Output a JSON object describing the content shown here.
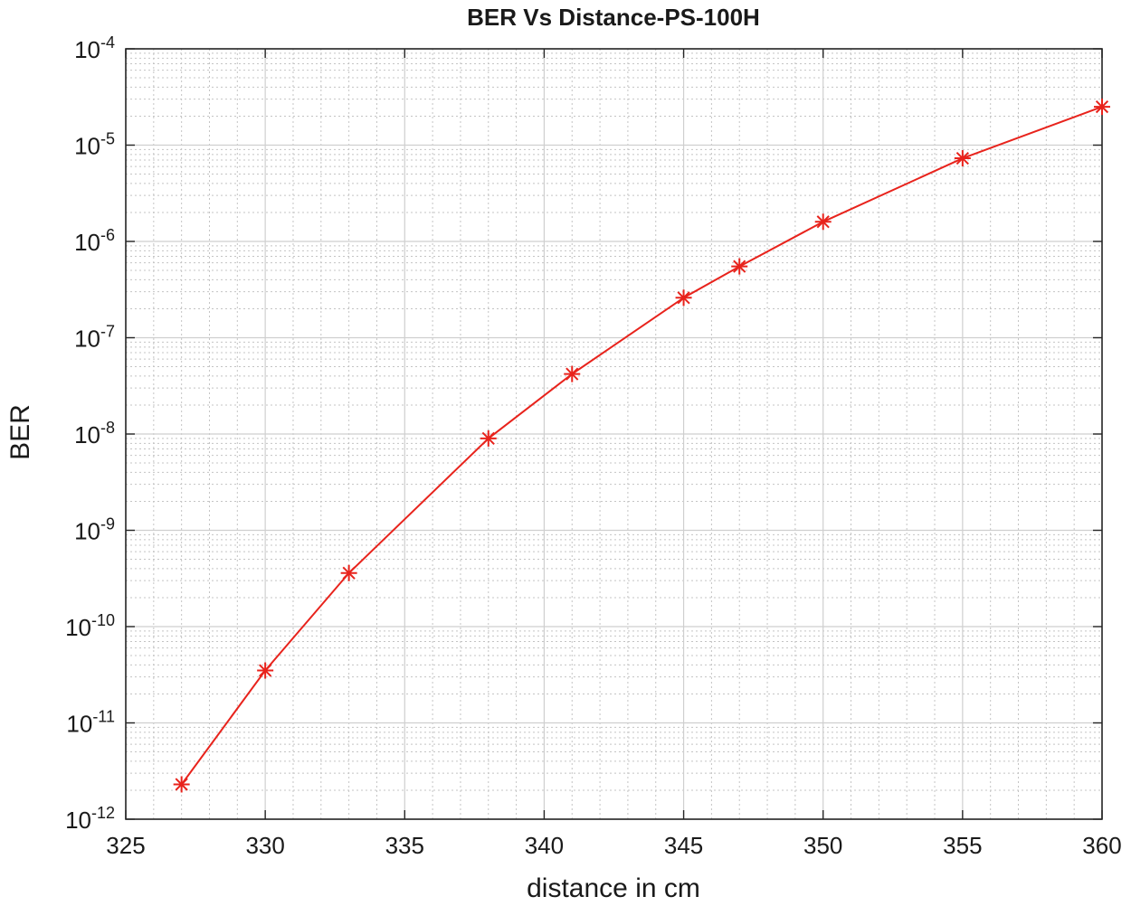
{
  "chart_data": {
    "type": "line",
    "title": "BER Vs Distance-PS-100H",
    "xlabel": "distance in cm",
    "ylabel": "BER",
    "xlim": [
      325,
      360
    ],
    "ylim": [
      1e-12,
      0.0001
    ],
    "yscale": "log",
    "grid": true,
    "minor_grid": true,
    "x_ticks": [
      325,
      330,
      335,
      340,
      345,
      350,
      355,
      360
    ],
    "x_tick_labels": [
      "325",
      "330",
      "335",
      "340",
      "345",
      "350",
      "355",
      "360"
    ],
    "y_tick_exponents": [
      -12,
      -11,
      -10,
      -9,
      -8,
      -7,
      -6,
      -5,
      -4
    ],
    "y_tick_base": "10",
    "y_tick_labels": [
      "10-12",
      "10-11",
      "10-10",
      "10-9",
      "10-8",
      "10-7",
      "10-6",
      "10-5",
      "10-4"
    ],
    "series": [
      {
        "color": "#e8231c",
        "marker": "asterisk",
        "x": [
          327,
          330,
          333,
          338,
          341,
          345,
          347,
          350,
          355,
          360
        ],
        "y": [
          2.3e-12,
          3.5e-11,
          3.6e-10,
          9e-09,
          4.2e-08,
          2.6e-07,
          5.5e-07,
          1.6e-06,
          7.3e-06,
          2.5e-05
        ]
      }
    ]
  }
}
